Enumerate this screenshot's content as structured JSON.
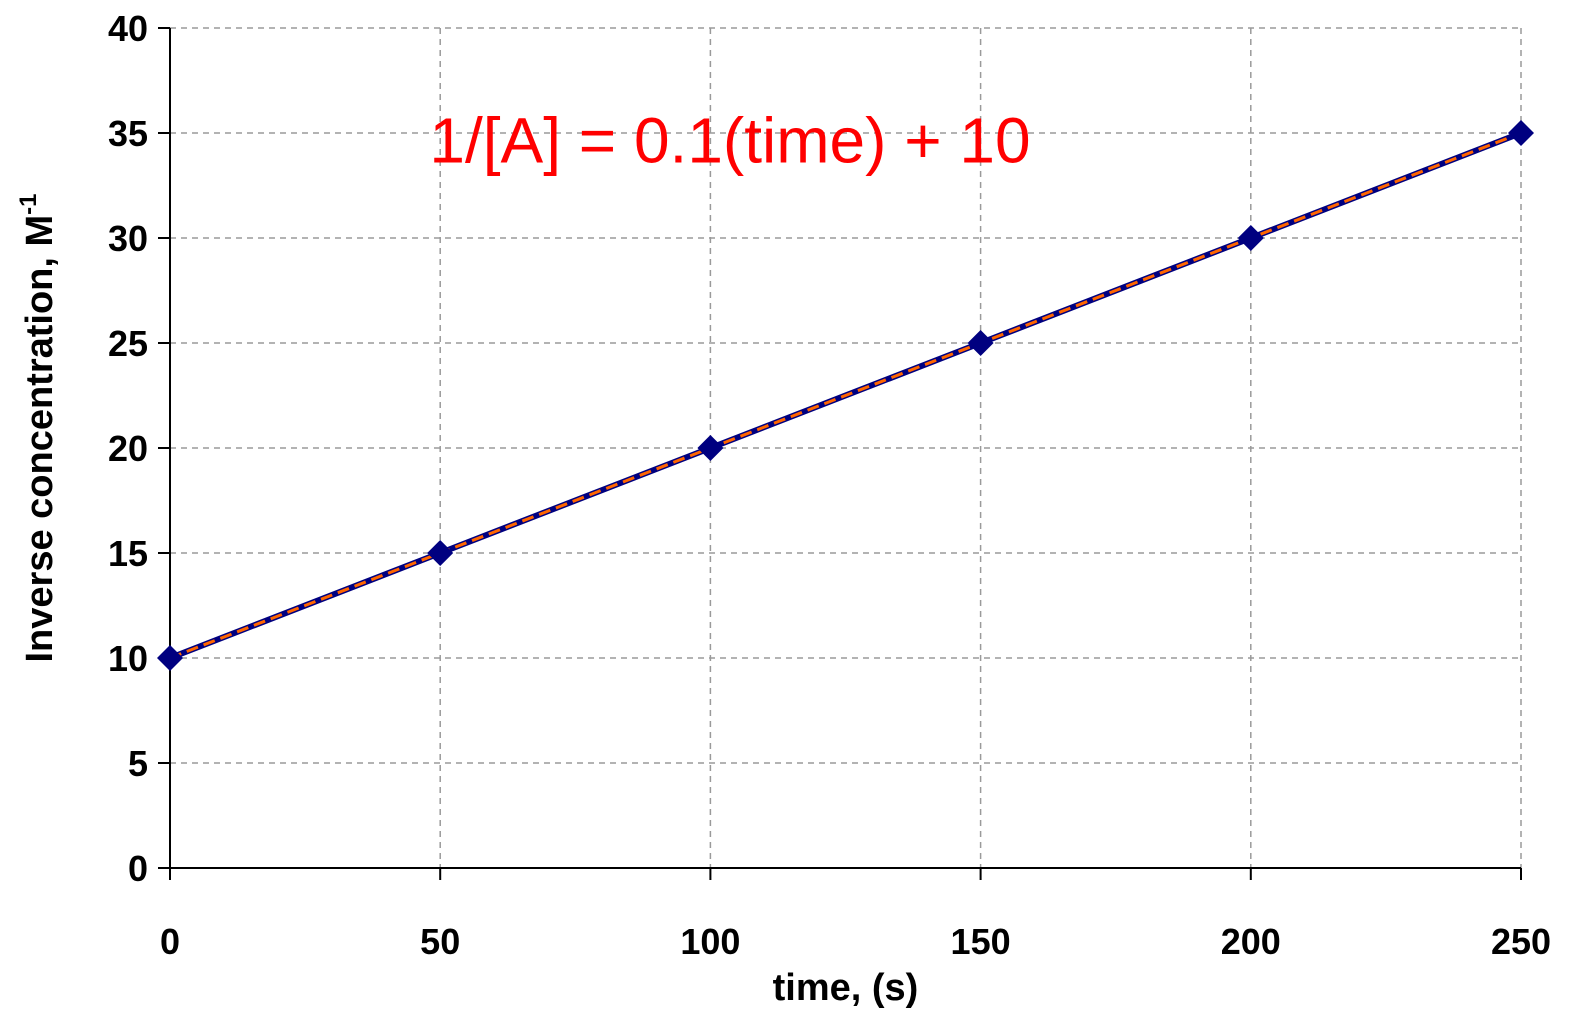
{
  "chart_data": {
    "type": "scatter",
    "xlabel": "time, (s)",
    "ylabel_main": "Inverse concentration, M",
    "ylabel_sup": "-1",
    "xlim": [
      0,
      250
    ],
    "ylim": [
      0,
      40
    ],
    "xticks": [
      0,
      50,
      100,
      150,
      200,
      250
    ],
    "yticks": [
      0,
      5,
      10,
      15,
      20,
      25,
      30,
      35,
      40
    ],
    "grid": true,
    "series": [
      {
        "x": [
          0,
          50,
          100,
          150,
          200,
          250
        ],
        "y": [
          10,
          15,
          20,
          25,
          30,
          35
        ],
        "color": "#000080",
        "marker": "diamond",
        "line": true
      }
    ],
    "trendline": {
      "slope": 0.1,
      "intercept": 10,
      "color": "#FF6600",
      "style": "dashed"
    },
    "annotation": {
      "text": "1/[A] = 0.1(time) + 10",
      "color": "#FF0000",
      "anchor_x": 48,
      "anchor_y": 33.6
    }
  }
}
